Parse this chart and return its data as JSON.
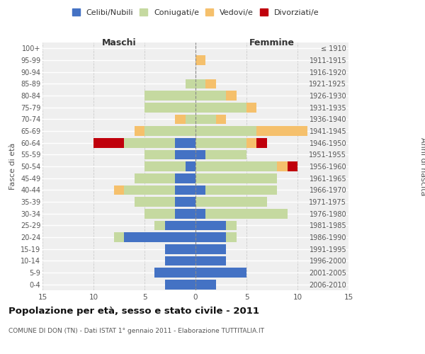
{
  "age_groups": [
    "100+",
    "95-99",
    "90-94",
    "85-89",
    "80-84",
    "75-79",
    "70-74",
    "65-69",
    "60-64",
    "55-59",
    "50-54",
    "45-49",
    "40-44",
    "35-39",
    "30-34",
    "25-29",
    "20-24",
    "15-19",
    "10-14",
    "5-9",
    "0-4"
  ],
  "birth_years": [
    "≤ 1910",
    "1911-1915",
    "1916-1920",
    "1921-1925",
    "1926-1930",
    "1931-1935",
    "1936-1940",
    "1941-1945",
    "1946-1950",
    "1951-1955",
    "1956-1960",
    "1961-1965",
    "1966-1970",
    "1971-1975",
    "1976-1980",
    "1981-1985",
    "1986-1990",
    "1991-1995",
    "1996-2000",
    "2001-2005",
    "2006-2010"
  ],
  "males": {
    "celibi": [
      0,
      0,
      0,
      0,
      0,
      0,
      0,
      0,
      2,
      2,
      1,
      2,
      2,
      2,
      2,
      3,
      7,
      3,
      3,
      4,
      3
    ],
    "coniugati": [
      0,
      0,
      0,
      1,
      5,
      5,
      1,
      5,
      5,
      3,
      4,
      4,
      5,
      4,
      3,
      1,
      1,
      0,
      0,
      0,
      0
    ],
    "vedovi": [
      0,
      0,
      0,
      0,
      0,
      0,
      1,
      1,
      0,
      0,
      0,
      0,
      1,
      0,
      0,
      0,
      0,
      0,
      0,
      0,
      0
    ],
    "divorziati": [
      0,
      0,
      0,
      0,
      0,
      0,
      0,
      0,
      3,
      0,
      0,
      0,
      0,
      0,
      0,
      0,
      0,
      0,
      0,
      0,
      0
    ]
  },
  "females": {
    "nubili": [
      0,
      0,
      0,
      0,
      0,
      0,
      0,
      0,
      0,
      1,
      0,
      0,
      1,
      0,
      1,
      3,
      3,
      3,
      3,
      5,
      2
    ],
    "coniugate": [
      0,
      0,
      0,
      1,
      3,
      5,
      2,
      6,
      5,
      4,
      8,
      8,
      7,
      7,
      8,
      1,
      1,
      0,
      0,
      0,
      0
    ],
    "vedove": [
      0,
      1,
      0,
      1,
      1,
      1,
      1,
      5,
      1,
      0,
      1,
      0,
      0,
      0,
      0,
      0,
      0,
      0,
      0,
      0,
      0
    ],
    "divorziate": [
      0,
      0,
      0,
      0,
      0,
      0,
      0,
      0,
      1,
      0,
      1,
      0,
      0,
      0,
      0,
      0,
      0,
      0,
      0,
      0,
      0
    ]
  },
  "colors": {
    "celibi": "#4472C4",
    "coniugati": "#C5D9A0",
    "vedovi": "#F5C06C",
    "divorziati": "#C0000C"
  },
  "xlim": 15,
  "title": "Popolazione per età, sesso e stato civile - 2011",
  "subtitle": "COMUNE DI DON (TN) - Dati ISTAT 1° gennaio 2011 - Elaborazione TUTTITALIA.IT",
  "xlabel_left": "Maschi",
  "xlabel_right": "Femmine",
  "ylabel_left": "Fasce di età",
  "ylabel_right": "Anni di nascita",
  "legend_labels": [
    "Celibi/Nubili",
    "Coniugati/e",
    "Vedovi/e",
    "Divorziati/e"
  ],
  "bg_color": "#ffffff",
  "plot_bg_color": "#efefef",
  "grid_color": "#ffffff"
}
